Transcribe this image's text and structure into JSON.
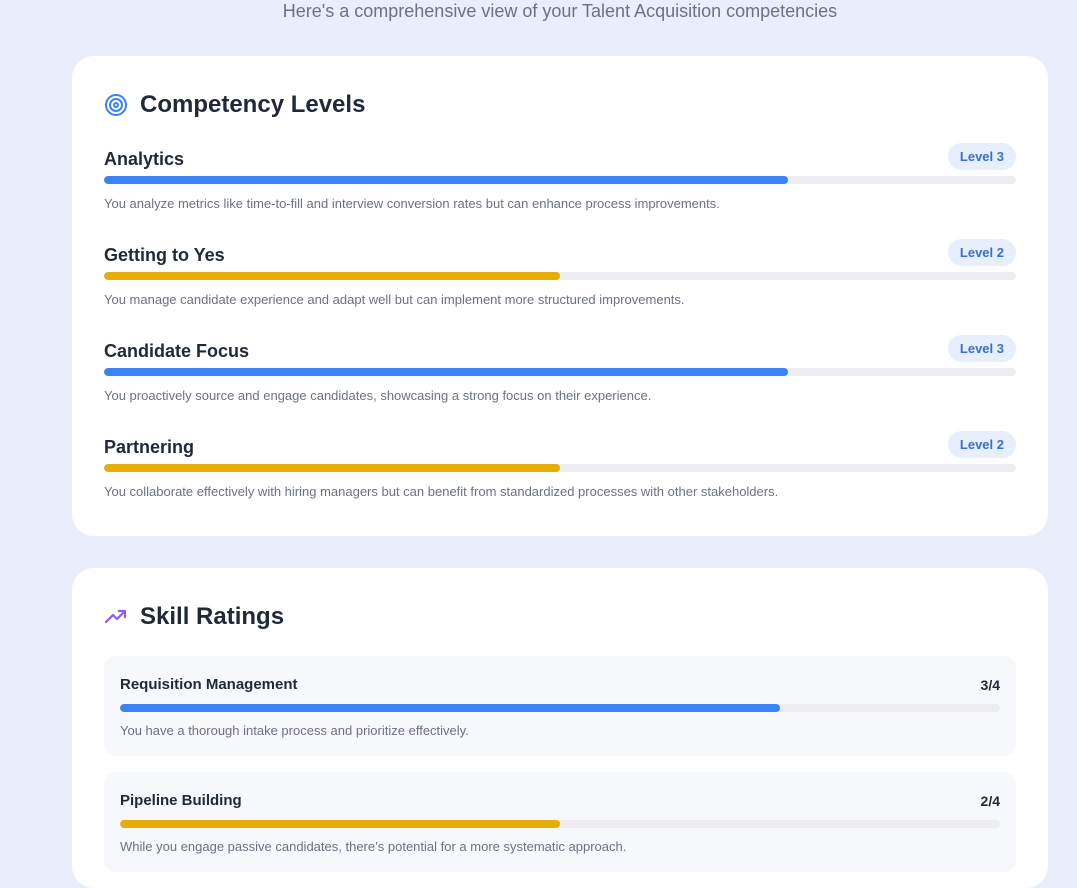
{
  "header": {
    "subtitle": "Here's a comprehensive view of your Talent Acquisition competencies"
  },
  "colors": {
    "blue": "#3b82f6",
    "amber": "#e5ad06",
    "badge_bg": "#e7effd",
    "badge_text": "#3b6fd6",
    "page_bg": "#eaedfa"
  },
  "competency": {
    "title": "Competency Levels",
    "icon": "target-icon",
    "items": [
      {
        "name": "Analytics",
        "level_label": "Level 3",
        "level": 3,
        "max_level": 4,
        "progress": 0.75,
        "color": "#3b82f6",
        "description": "You analyze metrics like time-to-fill and interview conversion rates but can enhance process improvements."
      },
      {
        "name": "Getting to Yes",
        "level_label": "Level 2",
        "level": 2,
        "max_level": 4,
        "progress": 0.5,
        "color": "#e5ad06",
        "description": "You manage candidate experience and adapt well but can implement more structured improvements."
      },
      {
        "name": "Candidate Focus",
        "level_label": "Level 3",
        "level": 3,
        "max_level": 4,
        "progress": 0.75,
        "color": "#3b82f6",
        "description": "You proactively source and engage candidates, showcasing a strong focus on their experience."
      },
      {
        "name": "Partnering",
        "level_label": "Level 2",
        "level": 2,
        "max_level": 4,
        "progress": 0.5,
        "color": "#e5ad06",
        "description": "You collaborate effectively with hiring managers but can benefit from standardized processes with other stakeholders."
      }
    ]
  },
  "skills": {
    "title": "Skill Ratings",
    "icon": "trending-up-icon",
    "items": [
      {
        "name": "Requisition Management",
        "score_label": "3/4",
        "progress": 0.75,
        "color": "#3b82f6",
        "description": "You have a thorough intake process and prioritize effectively."
      },
      {
        "name": "Pipeline Building",
        "score_label": "2/4",
        "progress": 0.5,
        "color": "#e5ad06",
        "description": "While you engage passive candidates, there’s potential for a more systematic approach."
      }
    ]
  }
}
